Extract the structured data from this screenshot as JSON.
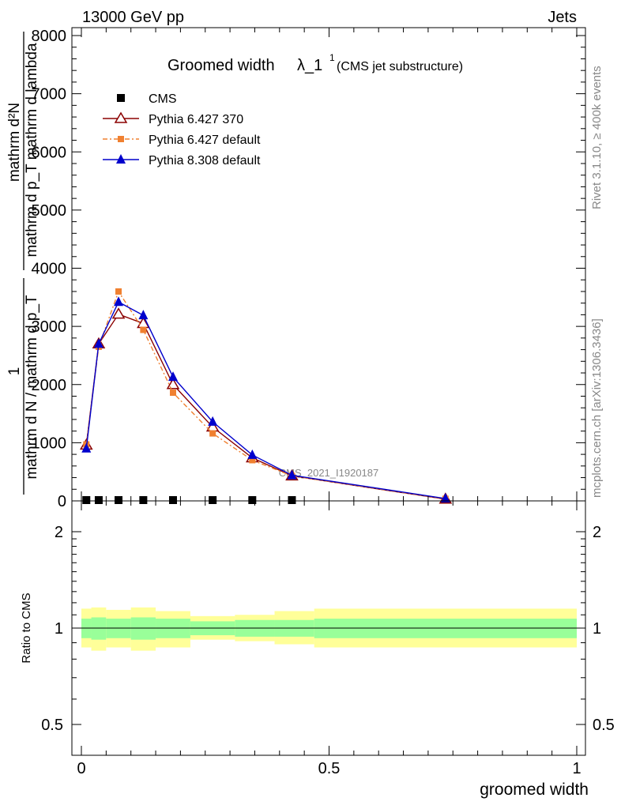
{
  "header": {
    "energy_label": "13000 GeV pp",
    "category_label": "Jets"
  },
  "side_labels": {
    "rivet": "Rivet 3.1.10, ≥ 400k events",
    "mcplots": "mcplots.cern.ch [arXiv:1306.3436]"
  },
  "watermark": "CMS_2021_I1920187",
  "chart_data": [
    {
      "type": "line",
      "title": "Groomed width",
      "title_symbol": "λ_1",
      "title_superscript": "1",
      "subtitle": "(CMS jet substructure)",
      "xlabel": "groomed width",
      "ylabel_numerator": "mathrm d²N",
      "ylabel_denominator": "mathrm d p_T mathrm d lambda",
      "ylabel_prefix_numerator": "1",
      "ylabel_prefix_denominator": "mathrm d N / mathrm d p_T",
      "xlim": [
        0,
        1
      ],
      "ylim": [
        0,
        8000
      ],
      "x_ticks": [
        "0",
        "0.5",
        "1"
      ],
      "y_ticks": [
        "0",
        "1000",
        "2000",
        "3000",
        "4000",
        "5000",
        "6000",
        "7000",
        "8000"
      ],
      "legend_position": "top-left",
      "series": [
        {
          "name": "CMS",
          "marker": "square",
          "color": "#000000",
          "x": [
            0.01,
            0.035,
            0.075,
            0.125,
            0.185,
            0.265,
            0.345,
            0.425
          ],
          "y": [
            0,
            0,
            0,
            0,
            0,
            0,
            0,
            0
          ]
        },
        {
          "name": "Pythia 6.427 370",
          "marker": "open-triangle",
          "color": "#8b0000",
          "x": [
            0.01,
            0.035,
            0.075,
            0.125,
            0.185,
            0.265,
            0.345,
            0.425,
            0.735
          ],
          "y": [
            960,
            2700,
            3210,
            3050,
            2000,
            1270,
            740,
            430,
            30
          ]
        },
        {
          "name": "Pythia 6.427 default",
          "marker": "small-square",
          "color": "#f08030",
          "x": [
            0.01,
            0.035,
            0.075,
            0.125,
            0.185,
            0.265,
            0.345,
            0.425,
            0.735
          ],
          "y": [
            970,
            2650,
            3600,
            2940,
            1860,
            1160,
            700,
            430,
            35
          ]
        },
        {
          "name": "Pythia 8.308 default",
          "marker": "filled-triangle",
          "color": "#0000cc",
          "x": [
            0.01,
            0.035,
            0.075,
            0.125,
            0.185,
            0.265,
            0.345,
            0.425,
            0.735
          ],
          "y": [
            900,
            2700,
            3420,
            3190,
            2130,
            1360,
            790,
            440,
            40
          ]
        }
      ]
    },
    {
      "type": "area",
      "ylabel": "Ratio to CMS",
      "xlim": [
        0,
        1
      ],
      "ylim": [
        0.4,
        2.3
      ],
      "y_scale": "log",
      "y_ticks": [
        "0.5",
        "1",
        "2"
      ],
      "reference_line": 1,
      "bins": [
        {
          "lo": 0.0,
          "hi": 0.02,
          "inner": [
            0.93,
            1.07
          ],
          "outer": [
            0.87,
            1.15
          ]
        },
        {
          "lo": 0.02,
          "hi": 0.05,
          "inner": [
            0.92,
            1.08
          ],
          "outer": [
            0.85,
            1.16
          ]
        },
        {
          "lo": 0.05,
          "hi": 0.1,
          "inner": [
            0.93,
            1.07
          ],
          "outer": [
            0.87,
            1.14
          ]
        },
        {
          "lo": 0.1,
          "hi": 0.15,
          "inner": [
            0.92,
            1.08
          ],
          "outer": [
            0.85,
            1.16
          ]
        },
        {
          "lo": 0.15,
          "hi": 0.22,
          "inner": [
            0.93,
            1.07
          ],
          "outer": [
            0.87,
            1.13
          ]
        },
        {
          "lo": 0.22,
          "hi": 0.31,
          "inner": [
            0.95,
            1.05
          ],
          "outer": [
            0.92,
            1.09
          ]
        },
        {
          "lo": 0.31,
          "hi": 0.39,
          "inner": [
            0.94,
            1.06
          ],
          "outer": [
            0.91,
            1.1
          ]
        },
        {
          "lo": 0.39,
          "hi": 0.47,
          "inner": [
            0.94,
            1.06
          ],
          "outer": [
            0.89,
            1.13
          ]
        },
        {
          "lo": 0.47,
          "hi": 1.0,
          "inner": [
            0.93,
            1.07
          ],
          "outer": [
            0.87,
            1.15
          ]
        }
      ]
    }
  ]
}
